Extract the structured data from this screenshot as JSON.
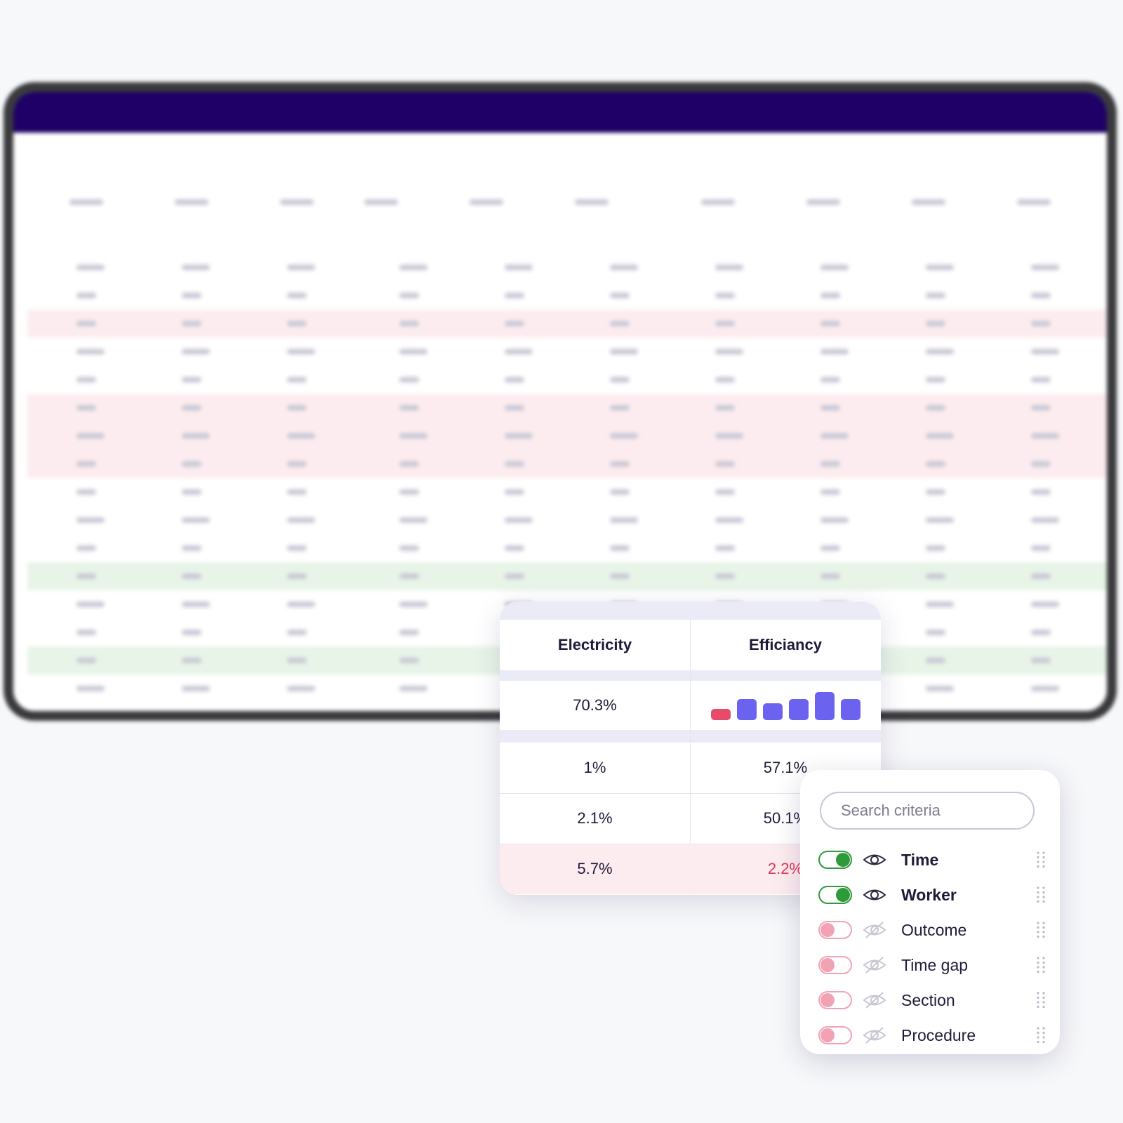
{
  "table": {
    "headers": [
      "Electricity",
      "Efficiancy"
    ],
    "summary": {
      "electricity": "70.3%",
      "efficiency_bars": {
        "values": [
          16,
          30,
          24,
          30,
          40,
          30
        ],
        "colors": [
          "#e84a6a",
          "#6b63f0",
          "#6b63f0",
          "#6b63f0",
          "#6b63f0",
          "#6b63f0"
        ]
      }
    },
    "rows": [
      [
        "1%",
        "57.1%"
      ],
      [
        "2.1%",
        "50.1%"
      ],
      [
        "5.7%",
        "2.2%"
      ]
    ]
  },
  "criteria_panel": {
    "search_placeholder": "Search criteria",
    "items": [
      {
        "label": "Time",
        "enabled": true
      },
      {
        "label": "Worker",
        "enabled": true
      },
      {
        "label": "Outcome",
        "enabled": false
      },
      {
        "label": "Time gap",
        "enabled": false
      },
      {
        "label": "Section",
        "enabled": false
      },
      {
        "label": "Procedure",
        "enabled": false
      }
    ]
  }
}
